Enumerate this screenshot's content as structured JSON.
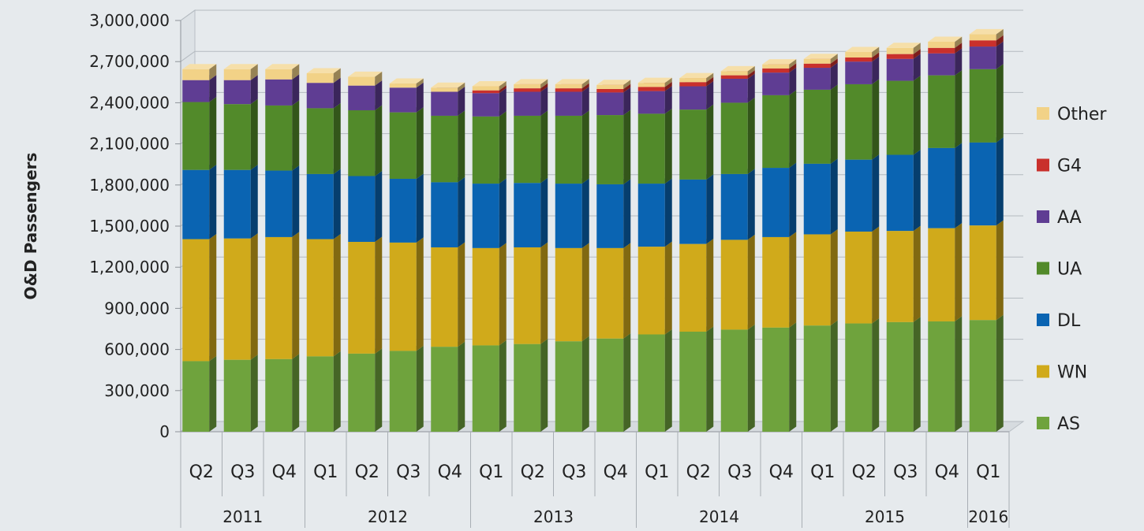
{
  "colors": {
    "AS": "#6fa33d",
    "WN": "#d0aa1b",
    "DL": "#0a64b2",
    "UA": "#528a2a",
    "AA": "#5f3d93",
    "G4": "#c9302c",
    "Other": "#f2d287",
    "background": "#e6eaed",
    "grid": "#c9ced3",
    "text": "#222222"
  },
  "chart_data": {
    "type": "bar",
    "stacked": true,
    "three_d": true,
    "title": "",
    "xlabel": "",
    "ylabel": "O&D Passengers",
    "ylim": [
      0,
      3000000
    ],
    "y_ticks": [
      "0",
      "300,000",
      "600,000",
      "900,000",
      "1,200,000",
      "1,500,000",
      "1,800,000",
      "2,100,000",
      "2,400,000",
      "2,700,000",
      "3,000,000"
    ],
    "y_tick_values": [
      0,
      300000,
      600000,
      900000,
      1200000,
      1500000,
      1800000,
      2100000,
      2400000,
      2700000,
      3000000
    ],
    "grid": true,
    "legend_position": "right",
    "categories": [
      "Q2",
      "Q3",
      "Q4",
      "Q1",
      "Q2",
      "Q3",
      "Q4",
      "Q1",
      "Q2",
      "Q3",
      "Q4",
      "Q1",
      "Q2",
      "Q3",
      "Q4",
      "Q1",
      "Q2",
      "Q3",
      "Q4",
      "Q1"
    ],
    "category_groups": [
      {
        "label": "2011",
        "count": 3
      },
      {
        "label": "2012",
        "count": 4
      },
      {
        "label": "2013",
        "count": 4
      },
      {
        "label": "2014",
        "count": 4
      },
      {
        "label": "2015",
        "count": 4
      },
      {
        "label": "2016",
        "count": 1
      }
    ],
    "series": [
      {
        "name": "AS",
        "values": [
          515000,
          525000,
          530000,
          550000,
          570000,
          590000,
          620000,
          630000,
          640000,
          660000,
          680000,
          710000,
          730000,
          745000,
          760000,
          775000,
          790000,
          800000,
          805000,
          815000
        ]
      },
      {
        "name": "WN",
        "values": [
          890000,
          885000,
          890000,
          855000,
          815000,
          790000,
          725000,
          710000,
          705000,
          680000,
          660000,
          640000,
          640000,
          655000,
          660000,
          665000,
          670000,
          665000,
          680000,
          690000
        ]
      },
      {
        "name": "DL",
        "values": [
          505000,
          500000,
          485000,
          475000,
          480000,
          465000,
          475000,
          470000,
          470000,
          470000,
          465000,
          460000,
          470000,
          480000,
          505000,
          515000,
          525000,
          555000,
          585000,
          605000
        ]
      },
      {
        "name": "UA",
        "values": [
          495000,
          480000,
          475000,
          480000,
          480000,
          485000,
          485000,
          490000,
          490000,
          495000,
          505000,
          510000,
          510000,
          520000,
          530000,
          540000,
          550000,
          540000,
          530000,
          535000
        ]
      },
      {
        "name": "AA",
        "values": [
          160000,
          175000,
          190000,
          185000,
          180000,
          180000,
          175000,
          170000,
          175000,
          175000,
          165000,
          165000,
          170000,
          175000,
          165000,
          160000,
          165000,
          160000,
          160000,
          165000
        ]
      },
      {
        "name": "G4",
        "values": [
          0,
          0,
          0,
          0,
          0,
          0,
          0,
          20000,
          25000,
          25000,
          25000,
          30000,
          30000,
          25000,
          30000,
          30000,
          30000,
          35000,
          40000,
          45000
        ]
      },
      {
        "name": "Other",
        "values": [
          80000,
          80000,
          75000,
          70000,
          65000,
          30000,
          30000,
          30000,
          30000,
          30000,
          30000,
          30000,
          30000,
          30000,
          30000,
          35000,
          40000,
          45000,
          45000,
          45000
        ]
      }
    ],
    "legend_order": [
      "Other",
      "G4",
      "AA",
      "UA",
      "DL",
      "WN",
      "AS"
    ]
  }
}
